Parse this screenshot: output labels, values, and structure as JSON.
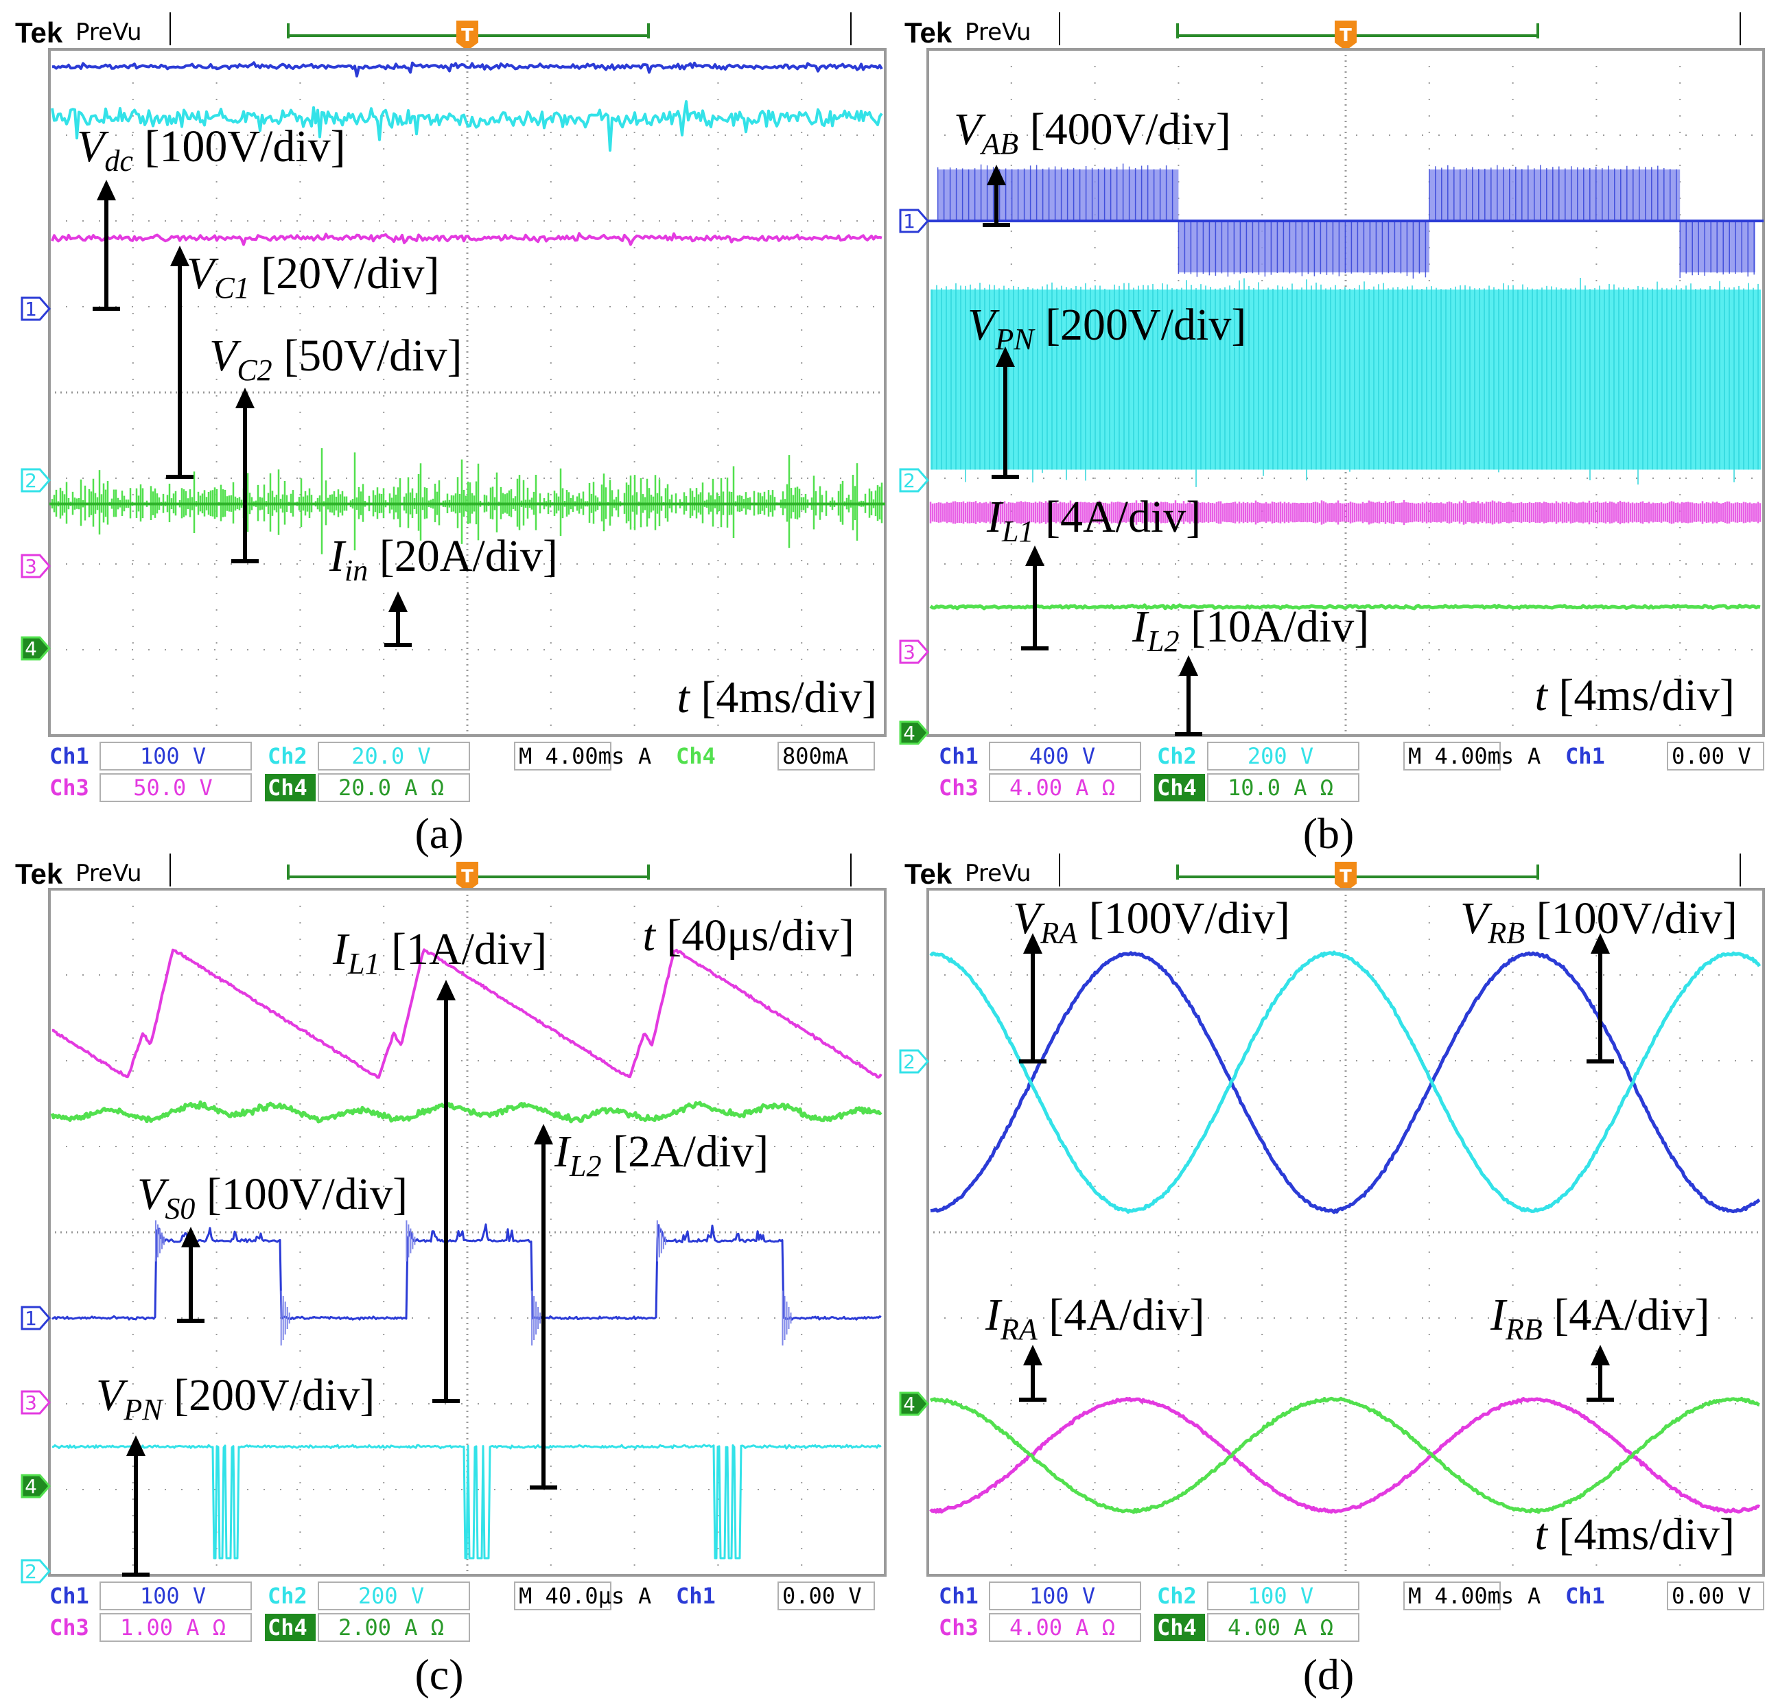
{
  "header": {
    "brand": "Tek",
    "mode": "PreVu",
    "trigger_marker": "T"
  },
  "colors": {
    "ch1": "#2b3bd6",
    "ch2": "#33e2e8",
    "ch3": "#e33ae0",
    "ch4": "#52e04e",
    "arrow": "#000000",
    "grid": "#9a9a9a",
    "statbox": "#b0b0b0"
  },
  "chart_data": [
    {
      "id": "a",
      "type": "line",
      "caption": "(a)",
      "time_label": "t [4ms/div]",
      "channel_markers": [
        "1",
        "2",
        "3",
        "4"
      ],
      "annotations": [
        {
          "sym": "V",
          "sub": "dc",
          "scale": "[100V/div]"
        },
        {
          "sym": "V",
          "sub": "C1",
          "scale": "[20V/div]"
        },
        {
          "sym": "V",
          "sub": "C2",
          "scale": "[50V/div]"
        },
        {
          "sym": "I",
          "sub": "in",
          "scale": "[20A/div]"
        }
      ],
      "traces": [
        {
          "channel": "ch1",
          "quantity": "Vdc",
          "kind": "flat",
          "level_div": 3.8,
          "ripple_div": 0.04
        },
        {
          "channel": "ch2",
          "quantity": "VC1",
          "kind": "flat",
          "level_div": 3.2,
          "ripple_div": 0.15
        },
        {
          "channel": "ch3",
          "quantity": "VC2",
          "kind": "flat",
          "level_div": 1.8,
          "ripple_div": 0.05
        },
        {
          "channel": "ch4",
          "quantity": "Iin",
          "kind": "noisy",
          "level_div": -1.3,
          "ripple_div": 0.45
        }
      ],
      "status": {
        "r1": [
          "Ch1",
          "100 V",
          "Ch2",
          "20.0 V",
          "M 4.00ms",
          "A",
          "Ch4",
          "800mA"
        ],
        "r2": [
          "Ch3",
          "50.0 V",
          "Ch4",
          "20.0 A Ω"
        ]
      }
    },
    {
      "id": "b",
      "type": "line",
      "caption": "(b)",
      "time_label": "t [4ms/div]",
      "channel_markers": [
        "1",
        "2",
        "3",
        "4"
      ],
      "annotations": [
        {
          "sym": "V",
          "sub": "AB",
          "scale": "[400V/div]"
        },
        {
          "sym": "V",
          "sub": "PN",
          "scale": "[200V/div]"
        },
        {
          "sym": "I",
          "sub": "L1",
          "scale": "[4A/div]"
        },
        {
          "sym": "I",
          "sub": "L2",
          "scale": "[10A/div]"
        }
      ],
      "traces": [
        {
          "channel": "ch1",
          "quantity": "VAB",
          "kind": "three-level PWM",
          "period_div": 6,
          "amplitude_div": 0.6
        },
        {
          "channel": "ch2",
          "quantity": "VPN",
          "kind": "pulsed band",
          "high_div": 1.2,
          "low_div": -0.9
        },
        {
          "channel": "ch3",
          "quantity": "IL1",
          "kind": "band",
          "level_div": -1.4,
          "ripple_div": 0.15
        },
        {
          "channel": "ch4",
          "quantity": "IL2",
          "kind": "flat",
          "level_div": -2.5,
          "ripple_div": 0.03
        }
      ],
      "status": {
        "r1": [
          "Ch1",
          "400 V",
          "Ch2",
          "200 V",
          "M 4.00ms",
          "A",
          "Ch1",
          "0.00 V"
        ],
        "r2": [
          "Ch3",
          "4.00 A Ω",
          "Ch4",
          "10.0 A Ω"
        ]
      }
    },
    {
      "id": "c",
      "type": "line",
      "caption": "(c)",
      "time_label": "t [40μs/div]",
      "channel_markers": [
        "1",
        "3",
        "4",
        "2"
      ],
      "annotations": [
        {
          "sym": "I",
          "sub": "L1",
          "scale": "[1A/div]"
        },
        {
          "sym": "I",
          "sub": "L2",
          "scale": "[2A/div]"
        },
        {
          "sym": "V",
          "sub": "S0",
          "scale": "[100V/div]"
        },
        {
          "sym": "V",
          "sub": "PN",
          "scale": "[200V/div]"
        }
      ],
      "traces": [
        {
          "channel": "ch3",
          "quantity": "IL1",
          "kind": "sawtooth",
          "period_div": 3,
          "max_div": 3.3,
          "min_div": 1.8
        },
        {
          "channel": "ch4",
          "quantity": "IL2",
          "kind": "ripple",
          "period_div": 3,
          "level_div": 1.4,
          "ripple_div": 0.12
        },
        {
          "channel": "ch1",
          "quantity": "VS0",
          "kind": "pulse",
          "period_div": 3,
          "high_div": -0.1,
          "low_div": -1.0
        },
        {
          "channel": "ch2",
          "quantity": "VPN",
          "kind": "notches",
          "period_div": 3,
          "level_div": -2.5,
          "low_div": -3.8
        }
      ],
      "status": {
        "r1": [
          "Ch1",
          "100 V",
          "Ch2",
          "200 V",
          "M 40.0μs",
          "A",
          "Ch1",
          "0.00 V"
        ],
        "r2": [
          "Ch3",
          "1.00 A Ω",
          "Ch4",
          "2.00 A Ω"
        ]
      }
    },
    {
      "id": "d",
      "type": "line",
      "caption": "(d)",
      "time_label": "t [4ms/div]",
      "channel_markers": [
        "2",
        "4"
      ],
      "annotations": [
        {
          "sym": "V",
          "sub": "RA",
          "scale": "[100V/div]"
        },
        {
          "sym": "V",
          "sub": "RB",
          "scale": "[100V/div]"
        },
        {
          "sym": "I",
          "sub": "RA",
          "scale": "[4A/div]"
        },
        {
          "sym": "I",
          "sub": "RB",
          "scale": "[4A/div]"
        }
      ],
      "traces": [
        {
          "channel": "ch1",
          "quantity": "VRA",
          "kind": "sine",
          "period_div": 4.8,
          "amplitude_div": 1.5,
          "offset_div": 1.75,
          "phase_deg": 90
        },
        {
          "channel": "ch2",
          "quantity": "VRB",
          "kind": "sine",
          "period_div": 4.8,
          "amplitude_div": 1.5,
          "offset_div": 1.75,
          "phase_deg": -90
        },
        {
          "channel": "ch3",
          "quantity": "IRA",
          "kind": "sine",
          "period_div": 4.8,
          "amplitude_div": 0.65,
          "offset_div": -2.6,
          "phase_deg": 90
        },
        {
          "channel": "ch4",
          "quantity": "IRB",
          "kind": "sine",
          "period_div": 4.8,
          "amplitude_div": 0.65,
          "offset_div": -2.6,
          "phase_deg": -90
        }
      ],
      "status": {
        "r1": [
          "Ch1",
          "100 V",
          "Ch2",
          "100 V",
          "M 4.00ms",
          "A",
          "Ch1",
          "0.00 V"
        ],
        "r2": [
          "Ch3",
          "4.00 A Ω",
          "Ch4",
          "4.00 A Ω"
        ]
      }
    }
  ]
}
